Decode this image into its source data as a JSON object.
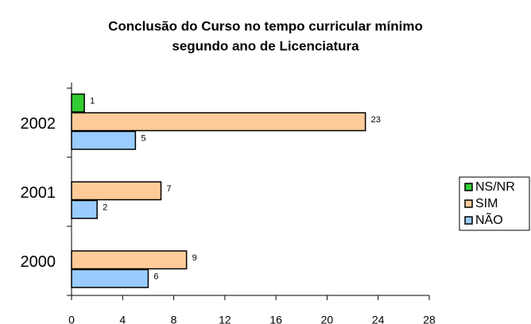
{
  "chart_data": {
    "type": "bar",
    "orientation": "horizontal",
    "title": [
      "Conclusão do Curso no tempo curricular mínimo",
      "segundo ano de Licenciatura"
    ],
    "categories": [
      "2000",
      "2001",
      "2002"
    ],
    "series": [
      {
        "name": "NÃO",
        "color": "#99ccff",
        "values": [
          6,
          2,
          5
        ]
      },
      {
        "name": "SIM",
        "color": "#ffcc99",
        "values": [
          9,
          7,
          23
        ]
      },
      {
        "name": "NS/NR",
        "color": "#33cc33",
        "values": [
          null,
          null,
          1
        ]
      }
    ],
    "xlim": [
      0,
      28
    ],
    "xticks": [
      0,
      4,
      8,
      12,
      16,
      20,
      24,
      28
    ],
    "legend": "right"
  }
}
